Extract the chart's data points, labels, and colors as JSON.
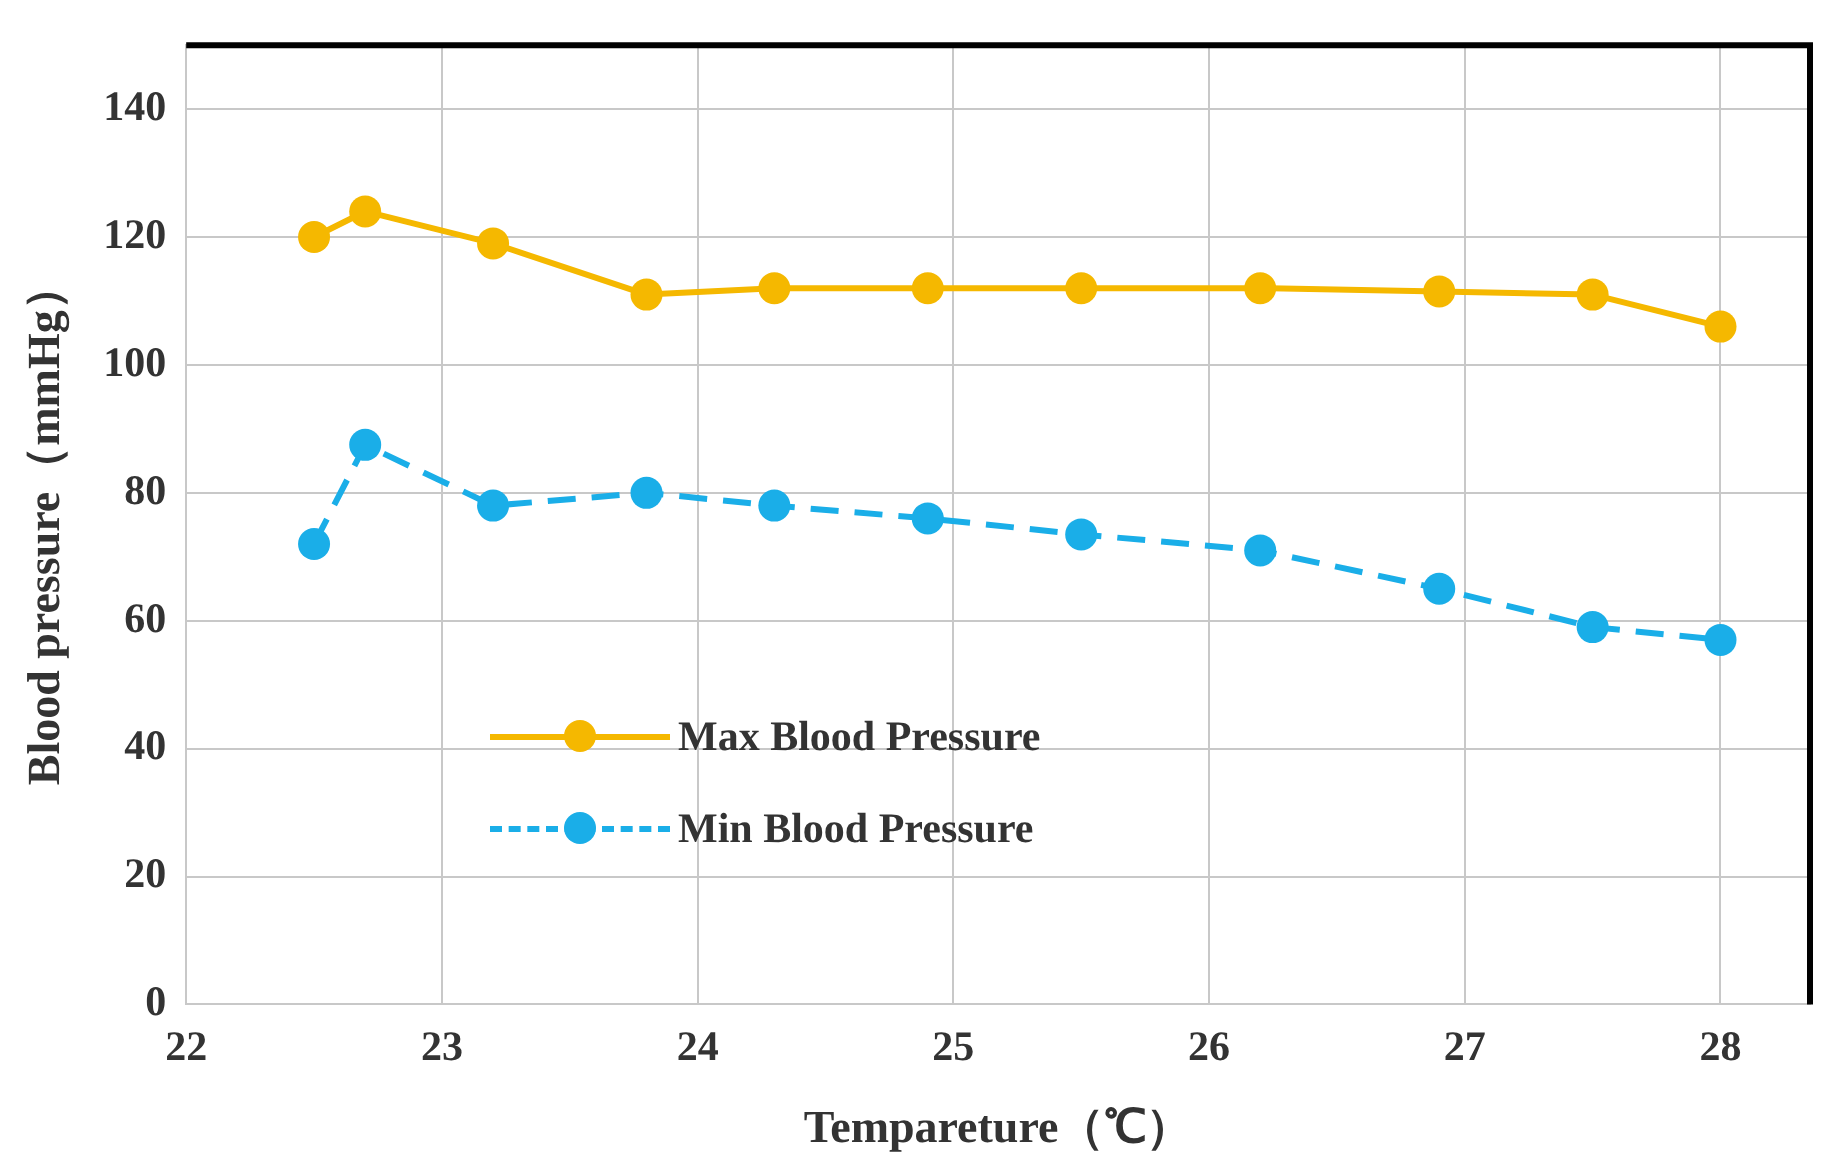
{
  "chart_data": {
    "type": "line",
    "xlabel": "Tempareture（℃）",
    "ylabel": "Blood pressure（mmHg）",
    "xlim": [
      22,
      28.35
    ],
    "xticks": [
      22,
      23,
      24,
      25,
      26,
      27,
      28
    ],
    "ylim": [
      0,
      150
    ],
    "yticks": [
      0,
      20,
      40,
      60,
      80,
      100,
      120,
      140
    ],
    "grid": true,
    "legend": "bottom left",
    "marker": "circle",
    "x": [
      22.5,
      22.7,
      23.2,
      23.8,
      24.3,
      24.9,
      25.5,
      26.2,
      26.9,
      27.5,
      28.0
    ],
    "series": [
      {
        "name": "Max Blood Pressure",
        "color": "#f5b800",
        "line_style": "solid",
        "values": [
          120,
          124,
          119,
          111,
          112,
          112,
          112,
          112,
          111.5,
          111,
          106
        ]
      },
      {
        "name": "Min Blood Pressure",
        "color": "#1aaee8",
        "line_style": "dashed",
        "values": [
          72,
          87.5,
          78,
          80,
          78,
          76,
          73.5,
          71,
          65,
          59,
          57
        ]
      }
    ]
  }
}
